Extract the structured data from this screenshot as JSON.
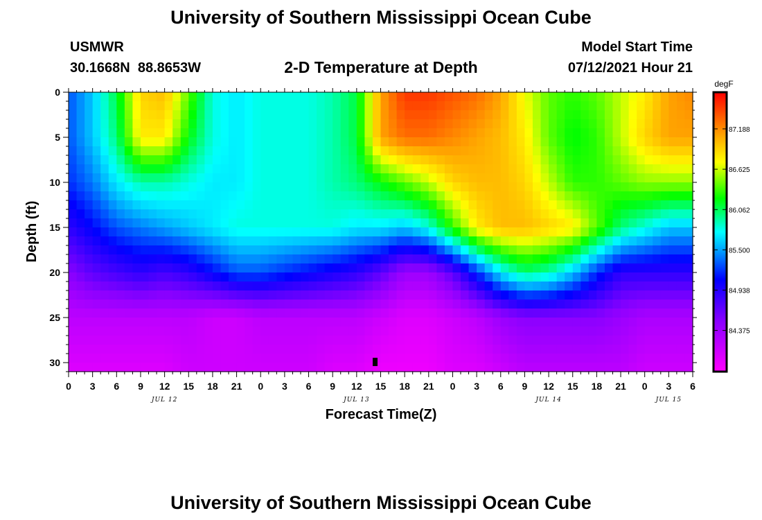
{
  "page": {
    "title_top": "University of Southern Mississippi Ocean Cube",
    "title_bottom": "University of Southern Mississippi Ocean Cube",
    "station": "USMWR",
    "coords": "30.1668N  88.8653W",
    "plot_title": "2-D Temperature at Depth",
    "model_label": "Model Start Time",
    "model_time": "07/12/2021 Hour 21"
  },
  "chart_data": {
    "type": "heatmap",
    "title": "2-D Temperature at Depth",
    "xlabel": "Forecast Time(Z)",
    "ylabel": "Depth (ft)",
    "x_tick_labels": [
      "0",
      "3",
      "6",
      "9",
      "12",
      "15",
      "18",
      "21",
      "0",
      "3",
      "6",
      "9",
      "12",
      "15",
      "18",
      "21",
      "0",
      "3",
      "6",
      "9",
      "12",
      "15",
      "18",
      "21",
      "0",
      "3",
      "6"
    ],
    "x_range_hours": [
      0,
      78
    ],
    "date_labels": [
      {
        "label": "JUL 12",
        "hour": 12
      },
      {
        "label": "JUL 13",
        "hour": 36
      },
      {
        "label": "JUL 14",
        "hour": 60
      },
      {
        "label": "JUL 15",
        "hour": 75
      }
    ],
    "y_tick_labels": [
      "0",
      "5",
      "10",
      "15",
      "20",
      "25",
      "30"
    ],
    "ylim": [
      0,
      31
    ],
    "y_inverted": true,
    "colorbar": {
      "unit": "degF",
      "min": 83.8,
      "max": 87.7,
      "tick_labels": [
        "87.188",
        "86.625",
        "86.062",
        "85.500",
        "84.938",
        "84.375"
      ]
    },
    "depth_ft": [
      0,
      5,
      10,
      15,
      20,
      25,
      31
    ],
    "hours": [
      0,
      3,
      6,
      9,
      12,
      15,
      18,
      21,
      24,
      27,
      30,
      33,
      36,
      39,
      42,
      45,
      48,
      51,
      54,
      57,
      60,
      63,
      66,
      69,
      72,
      75,
      78
    ],
    "temperature_degF": [
      [
        85.3,
        85.6,
        86.1,
        86.9,
        87.0,
        86.4,
        85.8,
        85.7,
        85.8,
        85.8,
        85.8,
        85.9,
        86.1,
        87.1,
        87.5,
        87.5,
        87.4,
        87.3,
        87.1,
        86.7,
        86.4,
        86.3,
        86.4,
        86.6,
        86.8,
        87.1,
        87.2
      ],
      [
        85.3,
        85.6,
        86.0,
        86.8,
        86.8,
        86.2,
        85.8,
        85.7,
        85.8,
        85.8,
        85.8,
        85.9,
        86.1,
        87.1,
        87.3,
        87.3,
        87.2,
        87.1,
        87.0,
        86.8,
        86.4,
        86.2,
        86.3,
        86.6,
        86.9,
        87.1,
        87.1
      ],
      [
        85.2,
        85.4,
        85.7,
        85.9,
        85.9,
        85.8,
        85.7,
        85.7,
        85.8,
        85.8,
        85.8,
        85.9,
        86.0,
        86.2,
        86.4,
        86.6,
        86.9,
        87.0,
        87.0,
        86.9,
        86.6,
        86.3,
        86.3,
        86.4,
        86.5,
        86.5,
        86.5
      ],
      [
        84.9,
        85.1,
        85.3,
        85.4,
        85.5,
        85.6,
        85.7,
        85.8,
        85.8,
        85.8,
        85.8,
        85.8,
        85.7,
        85.7,
        85.6,
        85.8,
        86.3,
        86.8,
        87.0,
        87.0,
        86.9,
        86.8,
        86.4,
        86.0,
        85.8,
        85.6,
        85.6
      ],
      [
        84.5,
        84.7,
        84.8,
        84.9,
        84.8,
        84.9,
        85.1,
        85.3,
        85.3,
        85.2,
        85.1,
        85.0,
        84.9,
        84.7,
        84.4,
        84.4,
        84.7,
        85.2,
        85.7,
        86.0,
        85.9,
        85.6,
        85.2,
        84.9,
        84.9,
        84.9,
        84.9
      ],
      [
        84.2,
        84.2,
        84.2,
        84.2,
        84.2,
        84.2,
        84.1,
        84.1,
        84.2,
        84.2,
        84.2,
        84.2,
        84.2,
        84.1,
        84.0,
        84.0,
        84.1,
        84.2,
        84.4,
        84.5,
        84.5,
        84.5,
        84.5,
        84.4,
        84.3,
        84.3,
        84.3
      ],
      [
        84.0,
        84.0,
        84.0,
        84.0,
        84.0,
        84.1,
        84.1,
        84.1,
        84.1,
        84.1,
        84.1,
        84.0,
        84.0,
        83.9,
        83.9,
        83.9,
        84.0,
        84.0,
        84.1,
        84.2,
        84.2,
        84.2,
        84.2,
        84.2,
        84.1,
        84.1,
        84.1
      ]
    ]
  }
}
